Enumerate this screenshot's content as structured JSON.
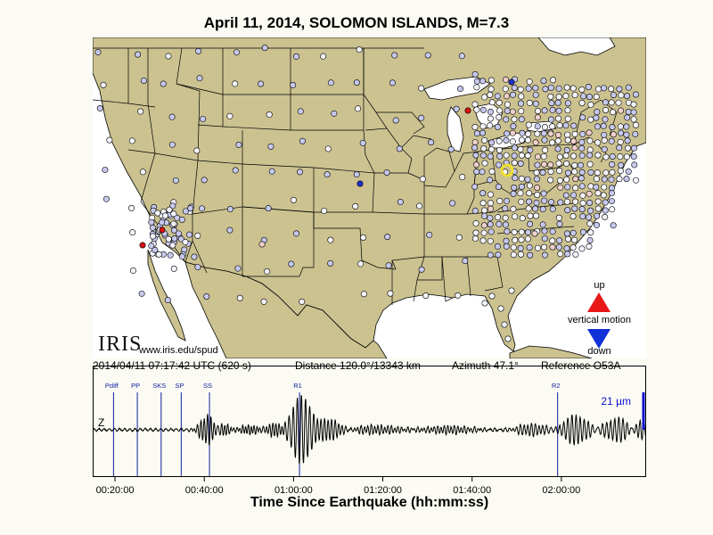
{
  "title": "April 11, 2014, SOLOMON ISLANDS, M=7.3",
  "status": {
    "time": "2014/04/11 07:17:42 UTC (620 s)",
    "distance": "Distance 120.0°/13343 km",
    "azimuth": "Azimuth  47.1°",
    "reference": "Reference O53A"
  },
  "legend": {
    "up": "up",
    "label": "vertical motion",
    "down": "down"
  },
  "branding": {
    "logo": "IRIS",
    "url": "www.iris.edu/spud"
  },
  "colors": {
    "land": "#cbc290",
    "water": "#ffffff",
    "border": "#000000",
    "station_neutral": "#f4f4ff",
    "station_blue_light": "#c6c8ee",
    "station_blue": "#2030c8",
    "station_red": "#d81010",
    "station_pink": "#efd0cc",
    "reference_station": "#f0e020",
    "up_arrow": "#e81818",
    "down_arrow": "#1030d8",
    "phase_line": "#1020a0",
    "scale_bar": "#1010d0"
  },
  "chart_data": [
    {
      "type": "map",
      "region": "Contiguous United States",
      "reference_station": "O53A",
      "station_colors": [
        "neutral",
        "light blue",
        "blue",
        "red",
        "pink"
      ]
    },
    {
      "type": "line",
      "channel": "Z",
      "xlabel": "Time Since Earthquake (hh:mm:ss)",
      "x_range_seconds": [
        900,
        8340
      ],
      "x_ticks": [
        {
          "seconds": 1200,
          "label": "00:20:00"
        },
        {
          "seconds": 2400,
          "label": "00:40:00"
        },
        {
          "seconds": 3600,
          "label": "01:00:00"
        },
        {
          "seconds": 4800,
          "label": "01:20:00"
        },
        {
          "seconds": 6000,
          "label": "01:40:00"
        },
        {
          "seconds": 7200,
          "label": "02:00:00"
        }
      ],
      "phases": [
        {
          "name": "Pdiff",
          "seconds": 1180
        },
        {
          "name": "PP",
          "seconds": 1500
        },
        {
          "name": "SKS",
          "seconds": 1820
        },
        {
          "name": "SP",
          "seconds": 2090
        },
        {
          "name": "SS",
          "seconds": 2470
        },
        {
          "name": "R1",
          "seconds": 3680
        },
        {
          "name": "R2",
          "seconds": 7150
        }
      ],
      "scale_label": "21 µm",
      "packets": [
        {
          "center": 2450,
          "width": 130,
          "amp": 0.75,
          "period": 45
        },
        {
          "center": 2660,
          "width": 120,
          "amp": 0.28,
          "period": 40
        },
        {
          "center": 3000,
          "width": 160,
          "amp": 0.22,
          "period": 38
        },
        {
          "center": 3350,
          "width": 150,
          "amp": 0.35,
          "period": 42
        },
        {
          "center": 3700,
          "width": 150,
          "amp": 1.9,
          "period": 55
        },
        {
          "center": 4050,
          "width": 240,
          "amp": 0.55,
          "period": 48
        },
        {
          "center": 4700,
          "width": 400,
          "amp": 0.22,
          "period": 45
        },
        {
          "center": 5700,
          "width": 400,
          "amp": 0.2,
          "period": 45
        },
        {
          "center": 6800,
          "width": 250,
          "amp": 0.3,
          "period": 50
        },
        {
          "center": 7400,
          "width": 230,
          "amp": 0.75,
          "period": 55
        },
        {
          "center": 7950,
          "width": 250,
          "amp": 0.6,
          "period": 55
        },
        {
          "center": 8250,
          "width": 120,
          "amp": 0.45,
          "period": 50
        }
      ]
    }
  ]
}
